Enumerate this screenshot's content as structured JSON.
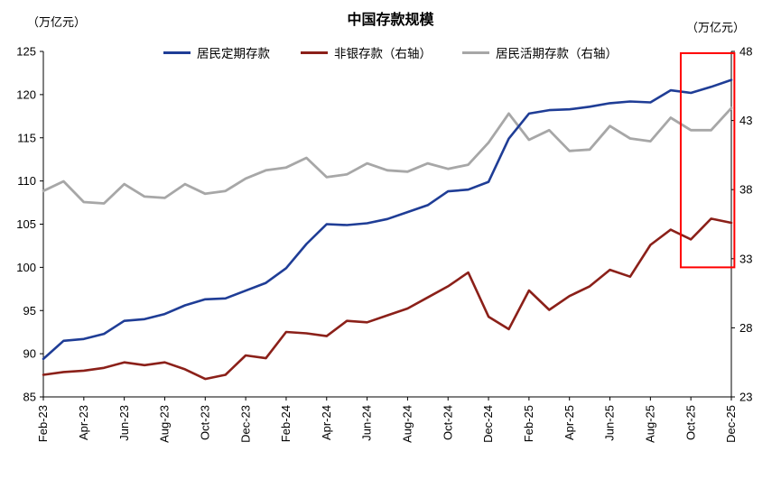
{
  "title": "中国存款规模",
  "left_unit": "（万亿元）",
  "right_unit": "（万亿元）",
  "chart_data": {
    "type": "line",
    "title": "中国存款规模",
    "x": [
      "Feb-23",
      "Mar-23",
      "Apr-23",
      "May-23",
      "Jun-23",
      "Jul-23",
      "Aug-23",
      "Sep-23",
      "Oct-23",
      "Nov-23",
      "Dec-23",
      "Jan-24",
      "Feb-24",
      "Mar-24",
      "Apr-24",
      "May-24",
      "Jun-24",
      "Jul-24",
      "Aug-24",
      "Sep-24",
      "Oct-24",
      "Nov-24",
      "Dec-24",
      "Jan-25",
      "Feb-25",
      "Mar-25",
      "Apr-25",
      "May-25",
      "Jun-25",
      "Jul-25",
      "Aug-25",
      "Sep-25",
      "Oct-25",
      "Nov-25",
      "Dec-25"
    ],
    "x_tick_step": 2,
    "left_axis": {
      "unit": "万亿元",
      "min": 85,
      "max": 125,
      "step": 5
    },
    "right_axis": {
      "unit": "万亿元",
      "min": 23,
      "max": 48,
      "step": 5
    },
    "grid": false,
    "legend_position": "top",
    "series": [
      {
        "name": "居民定期存款",
        "axis": "left",
        "color": "#1f3d96",
        "values": [
          89.4,
          91.5,
          91.7,
          92.3,
          93.8,
          94.0,
          94.6,
          95.6,
          96.3,
          96.4,
          97.3,
          98.2,
          99.9,
          102.7,
          105.0,
          104.9,
          105.1,
          105.6,
          106.4,
          107.2,
          108.8,
          109.0,
          109.9,
          114.9,
          117.8,
          118.2,
          118.3,
          118.6,
          119.0,
          119.2,
          119.1,
          120.5,
          120.2,
          120.9,
          121.7
        ]
      },
      {
        "name": "非银存款（右轴）",
        "axis": "right",
        "color": "#8b2019",
        "values": [
          24.6,
          24.8,
          24.9,
          25.1,
          25.5,
          25.3,
          25.5,
          25.0,
          24.3,
          24.6,
          26.0,
          25.8,
          27.7,
          27.6,
          27.4,
          28.5,
          28.4,
          28.9,
          29.4,
          30.2,
          31.0,
          32.0,
          28.8,
          27.9,
          30.7,
          29.3,
          30.3,
          31.0,
          32.2,
          31.7,
          34.0,
          35.1,
          34.4,
          35.9,
          35.6
        ]
      },
      {
        "name": "居民活期存款（右轴）",
        "axis": "right",
        "color": "#a7a7a7",
        "values": [
          37.9,
          38.6,
          37.1,
          37.0,
          38.4,
          37.5,
          37.4,
          38.4,
          37.7,
          37.9,
          38.8,
          39.4,
          39.6,
          40.3,
          38.9,
          39.1,
          39.9,
          39.4,
          39.3,
          39.9,
          39.5,
          39.8,
          41.4,
          43.5,
          41.6,
          42.3,
          40.8,
          40.9,
          42.6,
          41.7,
          41.5,
          43.2,
          42.3,
          42.3,
          43.9
        ]
      }
    ],
    "annotation_box": {
      "color": "#ff0000",
      "x_from_index": 31.5,
      "x_to_index": 34.15,
      "y_top_left_axis": 124.8,
      "y_bottom_left_axis": 100.0
    }
  }
}
